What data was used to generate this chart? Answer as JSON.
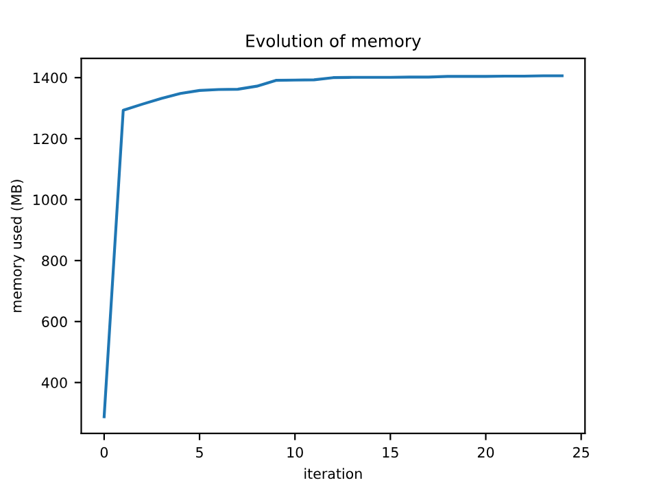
{
  "chart_data": {
    "type": "line",
    "title": "Evolution of memory",
    "xlabel": "iteration",
    "ylabel": "memory used (MB)",
    "x": [
      0,
      1,
      2,
      3,
      4,
      5,
      6,
      7,
      8,
      9,
      10,
      11,
      12,
      13,
      14,
      15,
      16,
      17,
      18,
      19,
      20,
      21,
      22,
      23,
      24
    ],
    "series": [
      {
        "color": "#1f77b4",
        "values": [
          288,
          1293,
          1313,
          1332,
          1348,
          1358,
          1361,
          1362,
          1372,
          1391,
          1392,
          1393,
          1400,
          1401,
          1401,
          1401,
          1402,
          1402,
          1404,
          1404,
          1404,
          1405,
          1405,
          1406,
          1406
        ]
      }
    ],
    "xlim": [
      -1.2,
      25.2
    ],
    "xticks": [
      0,
      5,
      10,
      15,
      20,
      25
    ],
    "ylim": [
      233,
      1463
    ],
    "yticks": [
      400,
      600,
      800,
      1000,
      1200,
      1400
    ],
    "grid": false,
    "legend": false
  }
}
